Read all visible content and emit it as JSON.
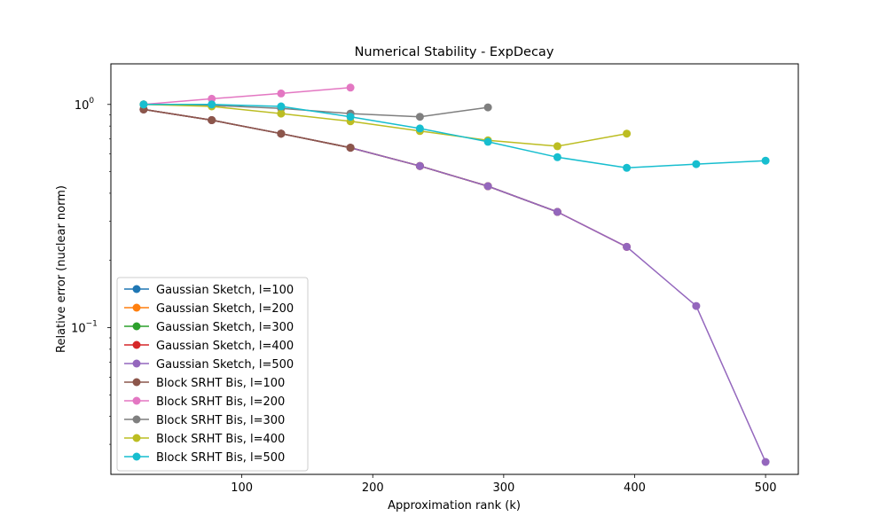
{
  "chart_data": {
    "type": "line",
    "title": "Numerical Stability - ExpDecay",
    "xlabel": "Approximation rank (k)",
    "ylabel": "Relative error (nuclear norm)",
    "yscale": "log",
    "xlim": [
      0,
      525
    ],
    "ylim": [
      0.022,
      1.52
    ],
    "xticks": [
      {
        "value": 100,
        "label": "100"
      },
      {
        "value": 200,
        "label": "200"
      },
      {
        "value": 300,
        "label": "300"
      },
      {
        "value": 400,
        "label": "400"
      },
      {
        "value": 500,
        "label": "500"
      }
    ],
    "yticks": [
      {
        "value": 1.0,
        "base": "10",
        "exp": "0"
      },
      {
        "value": 0.1,
        "base": "10",
        "exp": "−1"
      }
    ],
    "legend": "lower-left",
    "series": [
      {
        "name": "Gaussian Sketch, l=100",
        "color": "#1f77b4",
        "x": [
          25,
          77,
          130,
          183
        ],
        "y": [
          0.95,
          0.85,
          0.74,
          0.64
        ]
      },
      {
        "name": "Gaussian Sketch, l=200",
        "color": "#ff7f0e",
        "x": [
          25,
          77,
          130,
          183,
          236,
          288
        ],
        "y": [
          0.95,
          0.85,
          0.74,
          0.64,
          0.53,
          0.43
        ]
      },
      {
        "name": "Gaussian Sketch, l=300",
        "color": "#2ca02c",
        "x": [
          25,
          77,
          130,
          183,
          236,
          288,
          341
        ],
        "y": [
          0.95,
          0.85,
          0.74,
          0.64,
          0.53,
          0.43,
          0.33
        ]
      },
      {
        "name": "Gaussian Sketch, l=400",
        "color": "#d62728",
        "x": [
          25,
          77,
          130,
          183,
          236,
          288,
          341,
          394
        ],
        "y": [
          0.95,
          0.85,
          0.74,
          0.64,
          0.53,
          0.43,
          0.33,
          0.23
        ]
      },
      {
        "name": "Gaussian Sketch, l=500",
        "color": "#9467bd",
        "x": [
          25,
          77,
          130,
          183,
          236,
          288,
          341,
          394,
          447,
          500
        ],
        "y": [
          0.95,
          0.85,
          0.74,
          0.64,
          0.53,
          0.43,
          0.33,
          0.23,
          0.125,
          0.025
        ]
      },
      {
        "name": "Block SRHT Bis, l=100",
        "color": "#8c564b",
        "x": [
          25,
          77,
          130,
          183
        ],
        "y": [
          0.95,
          0.85,
          0.74,
          0.64
        ]
      },
      {
        "name": "Block SRHT Bis, l=200",
        "color": "#e377c2",
        "x": [
          25,
          77,
          130,
          183
        ],
        "y": [
          1.0,
          1.06,
          1.12,
          1.19
        ]
      },
      {
        "name": "Block SRHT Bis, l=300",
        "color": "#7f7f7f",
        "x": [
          25,
          77,
          130,
          183,
          236,
          288
        ],
        "y": [
          1.0,
          0.99,
          0.96,
          0.91,
          0.88,
          0.97
        ]
      },
      {
        "name": "Block SRHT Bis, l=400",
        "color": "#bcbd22",
        "x": [
          25,
          77,
          130,
          183,
          236,
          288,
          341,
          394
        ],
        "y": [
          1.0,
          0.98,
          0.91,
          0.84,
          0.76,
          0.69,
          0.65,
          0.74
        ]
      },
      {
        "name": "Block SRHT Bis, l=500",
        "color": "#17becf",
        "x": [
          25,
          77,
          130,
          183,
          236,
          288,
          341,
          394,
          447,
          500
        ],
        "y": [
          1.0,
          1.0,
          0.98,
          0.88,
          0.78,
          0.68,
          0.58,
          0.52,
          0.54,
          0.56
        ]
      }
    ]
  }
}
